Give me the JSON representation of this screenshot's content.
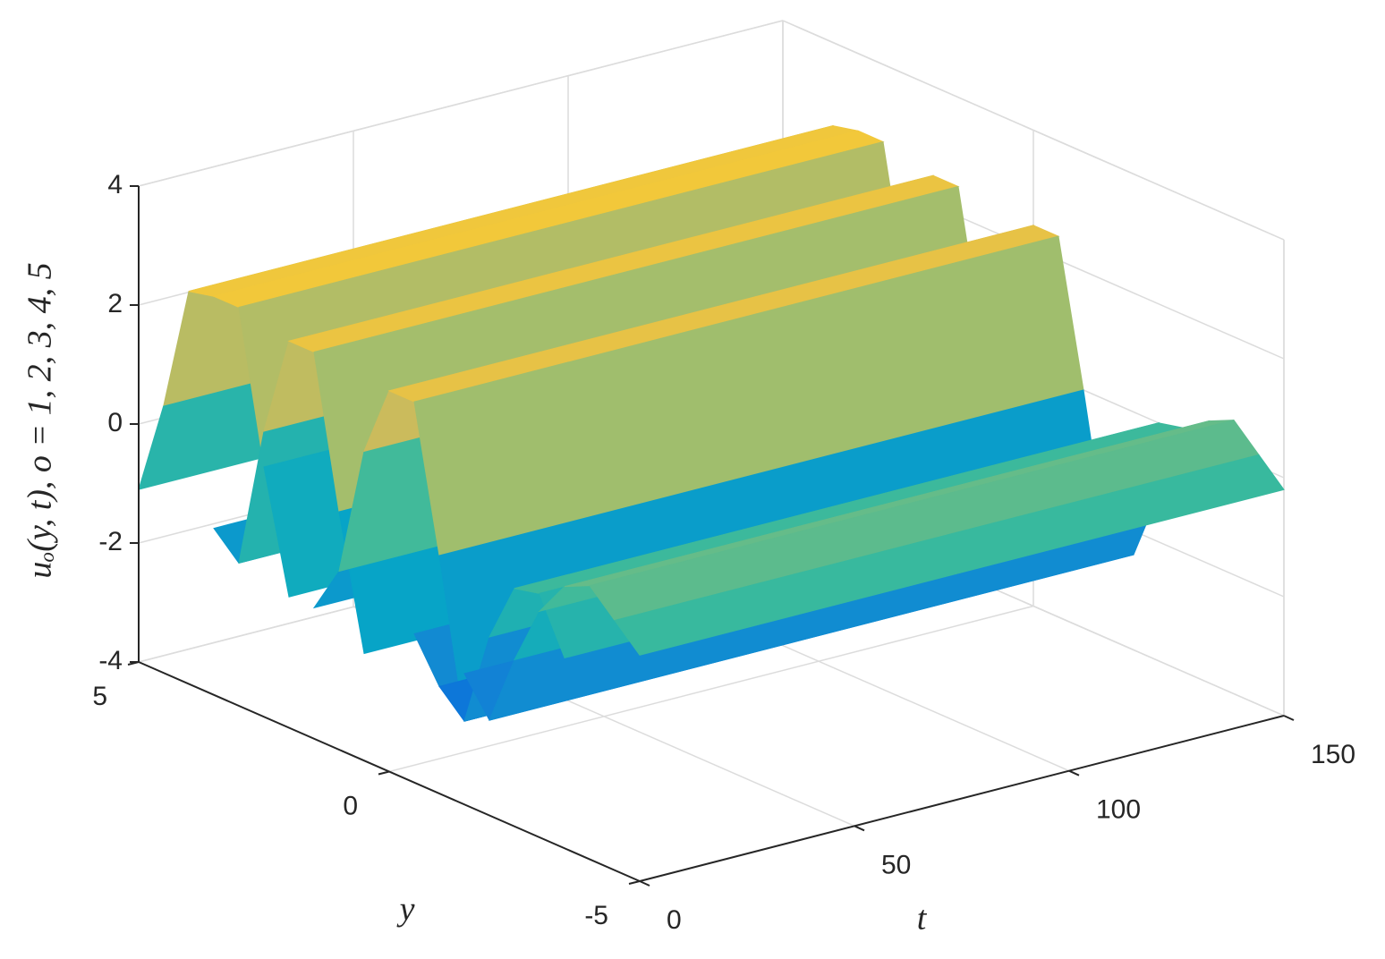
{
  "chart_data": {
    "type": "surface3d",
    "xlabel": "t",
    "ylabel": "y",
    "zlabel": "uₒ(y, t), o = 1, 2, 3, 4, 5",
    "xlim": [
      0,
      150
    ],
    "xticks": [
      0,
      50,
      100,
      150
    ],
    "ylim": [
      -5,
      5
    ],
    "yticks": [
      -5,
      0,
      5
    ],
    "zlim": [
      -4,
      4
    ],
    "zticks": [
      -4,
      -2,
      0,
      2,
      4
    ],
    "grid": true,
    "colormap": "parula",
    "y": [
      5,
      4.5,
      4,
      3.5,
      3,
      2.5,
      2,
      1.5,
      1,
      0.5,
      0,
      -0.5,
      -1,
      -1.5,
      -2,
      -2.5,
      -3,
      -3.5,
      -4,
      -4.5,
      -5
    ],
    "series": [
      {
        "values": [
          -1.1,
          0.5,
          2.6,
          2.7,
          2.7,
          0.2,
          -1.8,
          null,
          null,
          null,
          null,
          null,
          null,
          null,
          null,
          null,
          null,
          null,
          null,
          null,
          null
        ]
      },
      {
        "values": [
          null,
          null,
          null,
          -1.2,
          -1.6,
          0.8,
          2.5,
          2.5,
          0.0,
          -2.2,
          null,
          null,
          null,
          null,
          null,
          null,
          null,
          null,
          null,
          null,
          null
        ]
      },
      {
        "values": [
          null,
          null,
          null,
          null,
          null,
          null,
          null,
          -1.8,
          -1.0,
          1.2,
          2.4,
          2.4,
          0.0,
          -2.6,
          -2.2,
          null,
          null,
          null,
          null,
          null,
          null
        ]
      },
      {
        "values": [
          null,
          null,
          null,
          null,
          null,
          null,
          null,
          null,
          null,
          null,
          null,
          -1.5,
          -2.2,
          -2.6,
          -1.0,
          0.0,
          0.1,
          -0.8,
          null,
          null,
          null
        ]
      },
      {
        "values": [
          null,
          null,
          null,
          null,
          null,
          null,
          null,
          null,
          null,
          null,
          null,
          null,
          null,
          -1.8,
          -2.4,
          -1.2,
          -0.2,
          0.4,
          0.6,
          0.2,
          -0.2
        ]
      }
    ]
  }
}
